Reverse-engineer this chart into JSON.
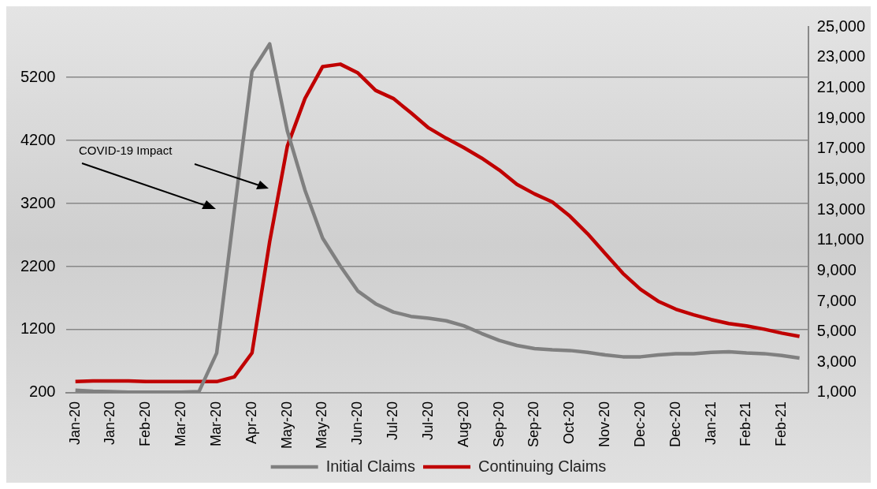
{
  "chart_data": {
    "type": "line",
    "categories": [
      "Jan-20",
      null,
      "Jan-20",
      null,
      "Feb-20",
      null,
      "Mar-20",
      null,
      "Mar-20",
      null,
      "Apr-20",
      null,
      "May-20",
      null,
      "May-20",
      null,
      "Jun-20",
      null,
      "Jul-20",
      null,
      "Jul-20",
      null,
      "Aug-20",
      null,
      "Sep-20",
      null,
      "Sep-20",
      null,
      "Oct-20",
      null,
      "Nov-20",
      null,
      "Dec-20",
      null,
      "Dec-20",
      null,
      "Jan-21",
      null,
      "Feb-21",
      null,
      "Feb-21",
      null
    ],
    "series": [
      {
        "name": "Initial Claims",
        "color": "#808080",
        "values": [
          240,
          225,
          220,
          210,
          210,
          210,
          210,
          220,
          830,
          3090,
          5290,
          5730,
          4350,
          3410,
          2650,
          2210,
          1810,
          1610,
          1480,
          1410,
          1380,
          1340,
          1260,
          1140,
          1030,
          950,
          900,
          880,
          870,
          840,
          800,
          770,
          770,
          800,
          820,
          820,
          840,
          850,
          830,
          820,
          790,
          750
        ]
      },
      {
        "name": "Continuing Claims",
        "color": "#c00000",
        "axis": "y2",
        "values": [
          1730,
          1780,
          1780,
          1780,
          1730,
          1730,
          1730,
          1730,
          1730,
          2040,
          3610,
          10910,
          17170,
          20300,
          22390,
          22550,
          21970,
          20830,
          20300,
          19360,
          18370,
          17690,
          17070,
          16390,
          15610,
          14670,
          14040,
          13520,
          12580,
          11430,
          10130,
          8830,
          7780,
          7000,
          6480,
          6110,
          5800,
          5540,
          5380,
          5170,
          4910,
          4700
        ]
      }
    ],
    "ylim": [
      200,
      6000
    ],
    "yticks": [
      200,
      1200,
      2200,
      3200,
      4200,
      5200
    ],
    "y2lim": [
      1000,
      25000
    ],
    "y2ticks": [
      {
        "value": 1000,
        "label": "1,000"
      },
      {
        "value": 3000,
        "label": "3,000"
      },
      {
        "value": 5000,
        "label": "5,000"
      },
      {
        "value": 7000,
        "label": "7,000"
      },
      {
        "value": 9000,
        "label": "9,000"
      },
      {
        "value": 11000,
        "label": "11,000"
      },
      {
        "value": 13000,
        "label": "13,000"
      },
      {
        "value": 15000,
        "label": "15,000"
      },
      {
        "value": 17000,
        "label": "17,000"
      },
      {
        "value": 19000,
        "label": "19,000"
      },
      {
        "value": 21000,
        "label": "21,000"
      },
      {
        "value": 23000,
        "label": "23,000"
      },
      {
        "value": 25000,
        "label": "25,000"
      }
    ],
    "annotations": [
      "COVID-19 Impact"
    ],
    "grid": "y",
    "legend": "bottom",
    "marker": "none",
    "line_style": "solid"
  }
}
